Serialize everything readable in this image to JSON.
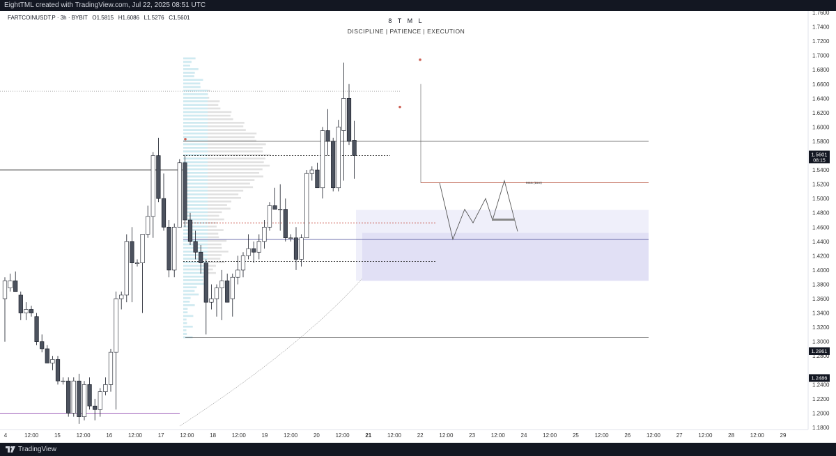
{
  "window": {
    "topbar_text": "EightTML created with TradingView.com, Jul 22, 2025 08:51 UTC",
    "brand": "TradingView"
  },
  "header": {
    "symbol_line": "FARTCOINUSDT.P · 3h · BYBIT   O1.5815   H1.6086   L1.5276   C1.5601",
    "title": "8 T M L",
    "subtitle": "DISCIPLINE  |  PATIENCE  |  EXECUTION"
  },
  "price_axis": {
    "labels": [
      "1.7600",
      "1.7400",
      "1.7200",
      "1.7000",
      "1.6800",
      "1.6600",
      "1.6400",
      "1.6200",
      "1.6000",
      "1.5800",
      "1.5400",
      "1.5200",
      "1.5000",
      "1.4800",
      "1.4600",
      "1.4400",
      "1.4200",
      "1.4000",
      "1.3800",
      "1.3600",
      "1.3400",
      "1.3200",
      "1.3000",
      "1.2800",
      "1.2400",
      "1.2200",
      "1.2000",
      "1.1800"
    ],
    "current_price": "1.5601",
    "countdown": "08:15",
    "level_tags": [
      "1.2861",
      "1.2486"
    ],
    "colors": {
      "current_tag": "#131722",
      "level_tag": "#131722"
    }
  },
  "time_axis": {
    "labels": [
      "4",
      "12:00",
      "15",
      "12:00",
      "16",
      "12:00",
      "17",
      "12:00",
      "18",
      "12:00",
      "19",
      "12:00",
      "20",
      "12:00",
      "21",
      "12:00",
      "22",
      "12:00",
      "23",
      "12:00",
      "24",
      "12:00",
      "25",
      "12:00",
      "26",
      "12:00",
      "27",
      "12:00",
      "28",
      "12:00",
      "29"
    ],
    "bold_label": "21"
  },
  "annotations": {
    "mss_label": "MSS (15m)"
  },
  "chart_data": {
    "type": "candlestick",
    "title": "8 T M L",
    "subtitle": "DISCIPLINE | PATIENCE | EXECUTION",
    "ylim": [
      1.18,
      1.77
    ],
    "interval": "3h",
    "candles": [
      {
        "o": 1.36,
        "h": 1.39,
        "l": 1.3,
        "c": 1.385
      },
      {
        "o": 1.375,
        "h": 1.395,
        "l": 1.37,
        "c": 1.385
      },
      {
        "o": 1.385,
        "h": 1.398,
        "l": 1.37,
        "c": 1.37
      },
      {
        "o": 1.365,
        "h": 1.37,
        "l": 1.33,
        "c": 1.34
      },
      {
        "o": 1.34,
        "h": 1.355,
        "l": 1.33,
        "c": 1.345
      },
      {
        "o": 1.345,
        "h": 1.35,
        "l": 1.335,
        "c": 1.34
      },
      {
        "o": 1.335,
        "h": 1.34,
        "l": 1.295,
        "c": 1.3
      },
      {
        "o": 1.3,
        "h": 1.31,
        "l": 1.285,
        "c": 1.29
      },
      {
        "o": 1.29,
        "h": 1.295,
        "l": 1.27,
        "c": 1.27
      },
      {
        "o": 1.27,
        "h": 1.28,
        "l": 1.26,
        "c": 1.275
      },
      {
        "o": 1.275,
        "h": 1.28,
        "l": 1.24,
        "c": 1.245
      },
      {
        "o": 1.245,
        "h": 1.25,
        "l": 1.24,
        "c": 1.245
      },
      {
        "o": 1.245,
        "h": 1.25,
        "l": 1.195,
        "c": 1.2
      },
      {
        "o": 1.2,
        "h": 1.25,
        "l": 1.195,
        "c": 1.245
      },
      {
        "o": 1.245,
        "h": 1.255,
        "l": 1.185,
        "c": 1.195
      },
      {
        "o": 1.195,
        "h": 1.245,
        "l": 1.19,
        "c": 1.24
      },
      {
        "o": 1.24,
        "h": 1.25,
        "l": 1.205,
        "c": 1.21
      },
      {
        "o": 1.21,
        "h": 1.22,
        "l": 1.19,
        "c": 1.205
      },
      {
        "o": 1.205,
        "h": 1.235,
        "l": 1.195,
        "c": 1.23
      },
      {
        "o": 1.23,
        "h": 1.25,
        "l": 1.225,
        "c": 1.24
      },
      {
        "o": 1.24,
        "h": 1.29,
        "l": 1.23,
        "c": 1.285
      },
      {
        "o": 1.285,
        "h": 1.37,
        "l": 1.205,
        "c": 1.36
      },
      {
        "o": 1.36,
        "h": 1.37,
        "l": 1.345,
        "c": 1.365
      },
      {
        "o": 1.365,
        "h": 1.45,
        "l": 1.355,
        "c": 1.44
      },
      {
        "o": 1.44,
        "h": 1.46,
        "l": 1.355,
        "c": 1.41
      },
      {
        "o": 1.41,
        "h": 1.415,
        "l": 1.405,
        "c": 1.41
      },
      {
        "o": 1.41,
        "h": 1.45,
        "l": 1.34,
        "c": 1.45
      },
      {
        "o": 1.45,
        "h": 1.49,
        "l": 1.445,
        "c": 1.475
      },
      {
        "o": 1.475,
        "h": 1.565,
        "l": 1.445,
        "c": 1.56
      },
      {
        "o": 1.56,
        "h": 1.585,
        "l": 1.495,
        "c": 1.5
      },
      {
        "o": 1.5,
        "h": 1.535,
        "l": 1.455,
        "c": 1.46
      },
      {
        "o": 1.46,
        "h": 1.47,
        "l": 1.39,
        "c": 1.4
      },
      {
        "o": 1.4,
        "h": 1.465,
        "l": 1.39,
        "c": 1.46
      },
      {
        "o": 1.46,
        "h": 1.555,
        "l": 1.46,
        "c": 1.55
      },
      {
        "o": 1.55,
        "h": 1.56,
        "l": 1.46,
        "c": 1.47
      },
      {
        "o": 1.47,
        "h": 1.48,
        "l": 1.435,
        "c": 1.44
      },
      {
        "o": 1.44,
        "h": 1.455,
        "l": 1.415,
        "c": 1.425
      },
      {
        "o": 1.425,
        "h": 1.435,
        "l": 1.395,
        "c": 1.41
      },
      {
        "o": 1.41,
        "h": 1.415,
        "l": 1.31,
        "c": 1.355
      },
      {
        "o": 1.355,
        "h": 1.38,
        "l": 1.345,
        "c": 1.36
      },
      {
        "o": 1.36,
        "h": 1.38,
        "l": 1.335,
        "c": 1.375
      },
      {
        "o": 1.375,
        "h": 1.4,
        "l": 1.33,
        "c": 1.385
      },
      {
        "o": 1.385,
        "h": 1.395,
        "l": 1.355,
        "c": 1.355
      },
      {
        "o": 1.36,
        "h": 1.395,
        "l": 1.335,
        "c": 1.39
      },
      {
        "o": 1.39,
        "h": 1.42,
        "l": 1.38,
        "c": 1.4
      },
      {
        "o": 1.4,
        "h": 1.425,
        "l": 1.39,
        "c": 1.42
      },
      {
        "o": 1.42,
        "h": 1.45,
        "l": 1.415,
        "c": 1.43
      },
      {
        "o": 1.43,
        "h": 1.44,
        "l": 1.41,
        "c": 1.425
      },
      {
        "o": 1.425,
        "h": 1.45,
        "l": 1.415,
        "c": 1.44
      },
      {
        "o": 1.44,
        "h": 1.47,
        "l": 1.43,
        "c": 1.46
      },
      {
        "o": 1.46,
        "h": 1.495,
        "l": 1.455,
        "c": 1.49
      },
      {
        "o": 1.49,
        "h": 1.515,
        "l": 1.485,
        "c": 1.485
      },
      {
        "o": 1.485,
        "h": 1.52,
        "l": 1.455,
        "c": 1.485
      },
      {
        "o": 1.485,
        "h": 1.5,
        "l": 1.44,
        "c": 1.445
      },
      {
        "o": 1.445,
        "h": 1.45,
        "l": 1.44,
        "c": 1.445
      },
      {
        "o": 1.445,
        "h": 1.46,
        "l": 1.4,
        "c": 1.415
      },
      {
        "o": 1.415,
        "h": 1.45,
        "l": 1.405,
        "c": 1.445
      },
      {
        "o": 1.445,
        "h": 1.54,
        "l": 1.445,
        "c": 1.535
      },
      {
        "o": 1.535,
        "h": 1.545,
        "l": 1.525,
        "c": 1.54
      },
      {
        "o": 1.54,
        "h": 1.55,
        "l": 1.515,
        "c": 1.515
      },
      {
        "o": 1.515,
        "h": 1.6,
        "l": 1.5,
        "c": 1.595
      },
      {
        "o": 1.595,
        "h": 1.625,
        "l": 1.56,
        "c": 1.58
      },
      {
        "o": 1.58,
        "h": 1.585,
        "l": 1.51,
        "c": 1.515
      },
      {
        "o": 1.515,
        "h": 1.61,
        "l": 1.51,
        "c": 1.6
      },
      {
        "o": 1.595,
        "h": 1.69,
        "l": 1.525,
        "c": 1.64
      },
      {
        "o": 1.64,
        "h": 1.66,
        "l": 1.575,
        "c": 1.58
      },
      {
        "o": 1.5815,
        "h": 1.6086,
        "l": 1.5276,
        "c": 1.5601
      }
    ],
    "levels": {
      "upper_dotted": 1.65,
      "upper_solid": 1.58,
      "poc_dotted": 1.56,
      "mid_red_dotted": 1.466,
      "mid_line": 1.443,
      "lower_dotted": 1.412,
      "range_low": 1.306,
      "left_level_high": 1.54,
      "left_level_low": 1.2,
      "mss_level": 1.522
    },
    "zones": [
      {
        "top": 1.484,
        "bottom": 1.385
      },
      {
        "top": 1.452,
        "bottom": 1.385
      }
    ],
    "projection": [
      1.522,
      1.443,
      1.485,
      1.466,
      1.5,
      1.47,
      1.525,
      1.454
    ],
    "colors": {
      "bull_body": "#ffffff",
      "bear_body": "#4c525e",
      "wick": "#131722",
      "zone": "#b7b4e6",
      "profile": "#c9ecf5",
      "mss_line": "#b8543f"
    }
  }
}
